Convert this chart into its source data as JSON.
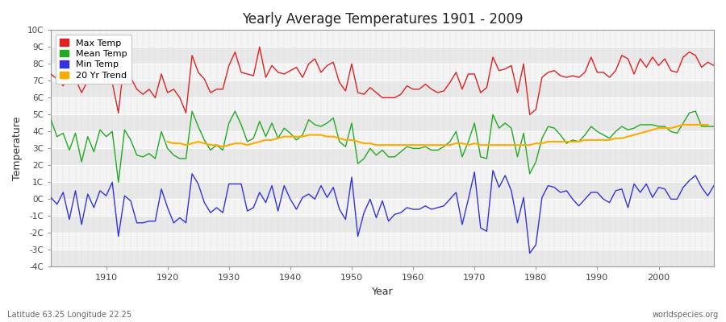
{
  "title": "Yearly Average Temperatures 1901 - 2009",
  "xlabel": "Year",
  "ylabel": "Temperature",
  "footer_left": "Latitude 63.25 Longitude 22.25",
  "footer_right": "worldspecies.org",
  "ylim": [
    -4,
    10
  ],
  "yticks": [
    -4,
    -3,
    -2,
    -1,
    0,
    1,
    2,
    3,
    4,
    5,
    6,
    7,
    8,
    9,
    10
  ],
  "ytick_labels": [
    "-4C",
    "-3C",
    "-2C",
    "-1C",
    "0C",
    "1C",
    "2C",
    "3C",
    "4C",
    "5C",
    "6C",
    "7C",
    "8C",
    "9C",
    "10C"
  ],
  "xlim": [
    1901,
    2009
  ],
  "xtick_years": [
    1910,
    1920,
    1930,
    1940,
    1950,
    1960,
    1970,
    1980,
    1990,
    2000
  ],
  "bg_color": "#ffffff",
  "plot_bg_color": "#f0f0f0",
  "grid_color": "#ffffff",
  "max_temp_color": "#dd2222",
  "mean_temp_color": "#22aa22",
  "min_temp_color": "#3333dd",
  "trend_color": "#ffaa00",
  "legend_labels": [
    "Max Temp",
    "Mean Temp",
    "Min Temp",
    "20 Yr Trend"
  ],
  "max_temp": [
    7.4,
    7.1,
    6.7,
    7.3,
    7.1,
    6.3,
    7.0,
    7.0,
    8.3,
    7.4,
    6.9,
    5.1,
    8.4,
    7.2,
    6.5,
    6.2,
    6.5,
    6.0,
    7.4,
    6.3,
    6.5,
    6.0,
    5.1,
    8.5,
    7.5,
    7.1,
    6.3,
    6.5,
    6.5,
    7.9,
    8.7,
    7.5,
    7.4,
    7.3,
    9.0,
    7.2,
    7.9,
    7.5,
    7.4,
    7.6,
    7.8,
    7.2,
    8.0,
    8.3,
    7.5,
    7.9,
    8.1,
    6.9,
    6.4,
    8.0,
    6.3,
    6.2,
    6.6,
    6.3,
    6.0,
    6.0,
    6.0,
    6.2,
    6.7,
    6.5,
    6.5,
    6.8,
    6.5,
    6.3,
    6.4,
    6.9,
    7.5,
    6.5,
    7.4,
    7.4,
    6.3,
    6.6,
    8.4,
    7.6,
    7.7,
    7.9,
    6.3,
    8.0,
    5.0,
    5.3,
    7.2,
    7.5,
    7.6,
    7.3,
    7.2,
    7.3,
    7.2,
    7.5,
    8.4,
    7.5,
    7.5,
    7.2,
    7.6,
    8.5,
    8.3,
    7.4,
    8.3,
    7.8,
    8.4,
    7.9,
    8.3,
    7.6,
    7.5,
    8.4,
    8.7,
    8.5,
    7.8,
    8.1,
    7.9
  ],
  "mean_temp": [
    4.7,
    3.7,
    3.9,
    2.9,
    3.9,
    2.2,
    3.7,
    2.8,
    4.1,
    3.7,
    4.0,
    1.0,
    4.1,
    3.5,
    2.6,
    2.5,
    2.7,
    2.4,
    4.0,
    3.0,
    2.6,
    2.4,
    2.4,
    5.2,
    4.3,
    3.5,
    2.9,
    3.2,
    2.9,
    4.5,
    5.2,
    4.4,
    3.4,
    3.6,
    4.6,
    3.7,
    4.5,
    3.6,
    4.2,
    3.9,
    3.5,
    3.8,
    4.7,
    4.4,
    4.3,
    4.5,
    4.8,
    3.4,
    3.1,
    4.5,
    2.1,
    2.4,
    3.0,
    2.6,
    2.9,
    2.5,
    2.5,
    2.8,
    3.1,
    3.0,
    3.0,
    3.1,
    2.9,
    2.9,
    3.1,
    3.4,
    4.0,
    2.5,
    3.4,
    4.5,
    2.5,
    2.4,
    5.0,
    4.2,
    4.5,
    4.2,
    2.5,
    3.9,
    1.5,
    2.2,
    3.6,
    4.3,
    4.2,
    3.8,
    3.3,
    3.5,
    3.4,
    3.8,
    4.3,
    4.0,
    3.8,
    3.6,
    4.0,
    4.3,
    4.1,
    4.2,
    4.4,
    4.4,
    4.4,
    4.3,
    4.3,
    4.0,
    3.9,
    4.5,
    5.1,
    5.2,
    4.3,
    4.3,
    4.3
  ],
  "min_temp": [
    0.1,
    -0.3,
    0.4,
    -1.2,
    0.5,
    -1.5,
    0.3,
    -0.5,
    0.5,
    0.2,
    1.0,
    -2.2,
    0.2,
    -0.1,
    -1.4,
    -1.4,
    -1.3,
    -1.3,
    0.6,
    -0.5,
    -1.4,
    -1.1,
    -1.4,
    1.5,
    0.9,
    -0.2,
    -0.8,
    -0.5,
    -0.8,
    0.9,
    0.9,
    0.9,
    -0.7,
    -0.5,
    0.4,
    -0.2,
    0.8,
    -0.7,
    0.8,
    0.0,
    -0.6,
    0.1,
    0.3,
    0.0,
    0.8,
    0.1,
    0.7,
    -0.6,
    -1.2,
    1.3,
    -2.2,
    -0.8,
    0.0,
    -1.1,
    -0.1,
    -1.3,
    -0.9,
    -0.8,
    -0.5,
    -0.6,
    -0.6,
    -0.4,
    -0.6,
    -0.5,
    -0.4,
    0.0,
    0.4,
    -1.5,
    0.0,
    1.6,
    -1.7,
    -1.9,
    1.7,
    0.7,
    1.4,
    0.5,
    -1.4,
    0.1,
    -3.2,
    -2.7,
    0.1,
    0.8,
    0.7,
    0.4,
    0.5,
    0.0,
    -0.4,
    0.0,
    0.4,
    0.4,
    0.0,
    -0.2,
    0.5,
    0.6,
    -0.5,
    0.9,
    0.4,
    0.9,
    0.1,
    0.7,
    0.6,
    0.0,
    0.0,
    0.7,
    1.1,
    1.4,
    0.7,
    0.2,
    0.8
  ],
  "trend": [
    null,
    null,
    null,
    null,
    null,
    null,
    null,
    null,
    null,
    null,
    null,
    null,
    null,
    null,
    null,
    null,
    null,
    null,
    null,
    3.4,
    3.3,
    3.3,
    3.2,
    3.3,
    3.4,
    3.3,
    3.2,
    3.2,
    3.1,
    3.2,
    3.3,
    3.3,
    3.2,
    3.3,
    3.4,
    3.5,
    3.5,
    3.6,
    3.7,
    3.7,
    3.7,
    3.7,
    3.8,
    3.8,
    3.8,
    3.7,
    3.7,
    3.6,
    3.5,
    3.5,
    3.4,
    3.3,
    3.3,
    3.2,
    3.2,
    3.2,
    3.2,
    3.2,
    3.2,
    3.2,
    3.2,
    3.2,
    3.2,
    3.2,
    3.2,
    3.2,
    3.3,
    3.3,
    3.2,
    3.3,
    3.2,
    3.2,
    3.2,
    3.2,
    3.2,
    3.2,
    3.2,
    3.2,
    3.2,
    3.3,
    3.3,
    3.4,
    3.4,
    3.4,
    3.4,
    3.4,
    3.4,
    3.5,
    3.5,
    3.5,
    3.5,
    3.5,
    3.6,
    3.6,
    3.7,
    3.8,
    3.9,
    4.0,
    4.1,
    4.2,
    4.2,
    4.2,
    4.3,
    4.4,
    4.4,
    4.4,
    4.4,
    4.4
  ]
}
